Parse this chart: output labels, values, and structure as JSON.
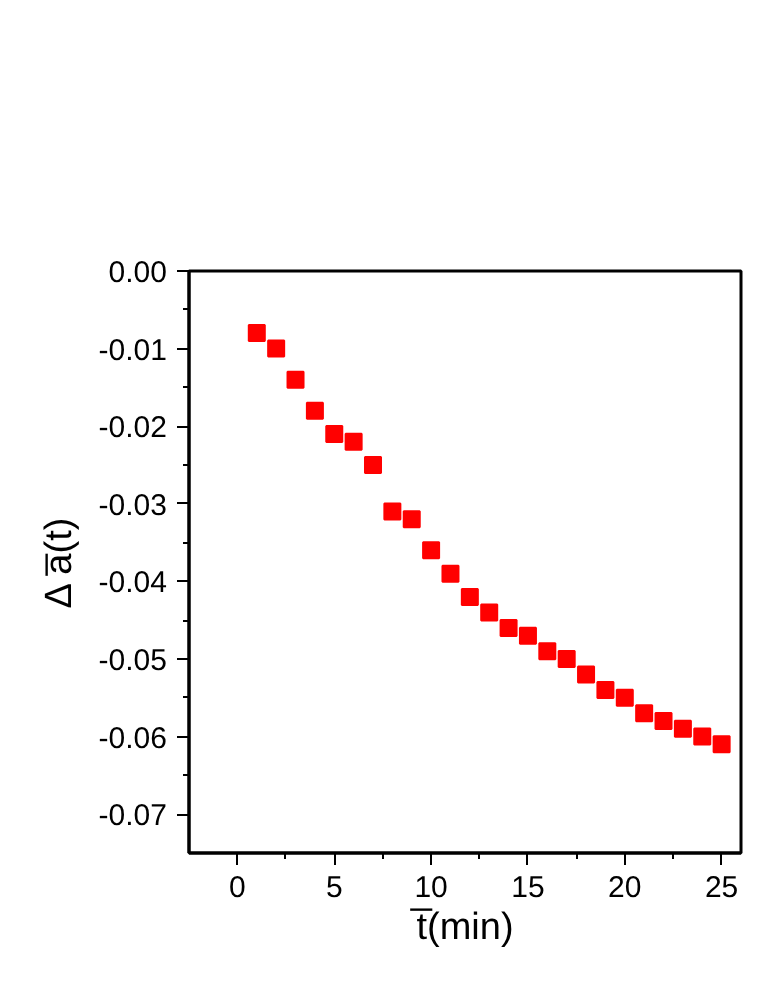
{
  "chart_data": {
    "type": "scatter",
    "xlabel": "t̅(min)",
    "ylabel": "Δ a̅(t)",
    "x": [
      1,
      2,
      3,
      4,
      5,
      6,
      7,
      8,
      9,
      10,
      11,
      12,
      13,
      14,
      15,
      16,
      17,
      18,
      19,
      20,
      21,
      22,
      23,
      24,
      25
    ],
    "series": [
      {
        "color": "#ff0000",
        "values": [
          -0.008,
          -0.01,
          -0.014,
          -0.018,
          -0.021,
          -0.022,
          -0.025,
          -0.031,
          -0.032,
          -0.036,
          -0.039,
          -0.042,
          -0.044,
          -0.046,
          -0.047,
          -0.049,
          -0.05,
          -0.052,
          -0.054,
          -0.055,
          -0.057,
          -0.058,
          -0.059,
          -0.06,
          -0.061
        ]
      }
    ],
    "marker": "square",
    "xlim": [
      -2.5,
      26
    ],
    "ylim": [
      -0.075,
      0.0
    ],
    "xticks": [
      0,
      5,
      10,
      15,
      20,
      25
    ],
    "yticks": [
      {
        "value": 0.0,
        "label": "0.00"
      },
      {
        "value": -0.01,
        "label": "-0.01"
      },
      {
        "value": -0.02,
        "label": "-0.02"
      },
      {
        "value": -0.03,
        "label": "-0.03"
      },
      {
        "value": -0.04,
        "label": "-0.04"
      },
      {
        "value": -0.05,
        "label": "-0.05"
      },
      {
        "value": -0.06,
        "label": "-0.06"
      },
      {
        "value": -0.07,
        "label": "-0.07"
      }
    ],
    "grid": false
  }
}
